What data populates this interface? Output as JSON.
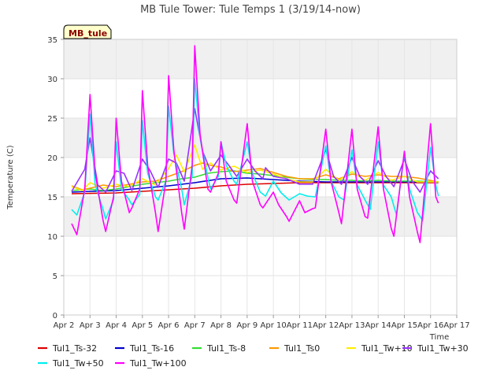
{
  "chart_data": {
    "type": "line",
    "title": "MB Tule Tower: Tule Temps 1 (3/19/14-now)",
    "badge": "MB_tule",
    "xlabel": "Time",
    "ylabel": "Temperature (C)",
    "xlim": [
      2,
      17
    ],
    "ylim": [
      0,
      35
    ],
    "yticks": [
      0,
      5,
      10,
      15,
      20,
      25,
      30,
      35
    ],
    "xticks": [
      {
        "v": 2,
        "label": "Apr 2"
      },
      {
        "v": 3,
        "label": "Apr 3"
      },
      {
        "v": 4,
        "label": "Apr 4"
      },
      {
        "v": 5,
        "label": "Apr 5"
      },
      {
        "v": 6,
        "label": "Apr 6"
      },
      {
        "v": 7,
        "label": "Apr 7"
      },
      {
        "v": 8,
        "label": "Apr 8"
      },
      {
        "v": 9,
        "label": "Apr 9"
      },
      {
        "v": 10,
        "label": "Apr 10"
      },
      {
        "v": 11,
        "label": "Apr 11"
      },
      {
        "v": 12,
        "label": "Apr 12"
      },
      {
        "v": 13,
        "label": "Apr 13"
      },
      {
        "v": 14,
        "label": "Apr 14"
      },
      {
        "v": 15,
        "label": "Apr 15"
      },
      {
        "v": 16,
        "label": "Apr 16"
      },
      {
        "v": 17,
        "label": "Apr 17"
      }
    ],
    "series": [
      {
        "name": "Tul1_Ts-32",
        "color": "#dd0000",
        "points": [
          [
            2.3,
            15.4
          ],
          [
            4,
            15.5
          ],
          [
            5,
            15.7
          ],
          [
            6,
            15.9
          ],
          [
            7,
            16.1
          ],
          [
            8,
            16.4
          ],
          [
            9,
            16.6
          ],
          [
            10,
            16.7
          ],
          [
            11,
            16.8
          ],
          [
            12,
            16.8
          ],
          [
            13,
            16.8
          ],
          [
            14,
            16.8
          ],
          [
            15,
            16.8
          ],
          [
            16.3,
            16.8
          ]
        ]
      },
      {
        "name": "Tul1_Ts-16",
        "color": "#0000cc",
        "points": [
          [
            2.3,
            15.6
          ],
          [
            3,
            15.7
          ],
          [
            4,
            15.8
          ],
          [
            5,
            16.1
          ],
          [
            6,
            16.4
          ],
          [
            7,
            16.8
          ],
          [
            8,
            17.3
          ],
          [
            9,
            17.4
          ],
          [
            10,
            17.2
          ],
          [
            11,
            17.0
          ],
          [
            12,
            16.9
          ],
          [
            13,
            16.9
          ],
          [
            14,
            16.9
          ],
          [
            15,
            16.9
          ],
          [
            16.3,
            16.9
          ]
        ]
      },
      {
        "name": "Tul1_Ts-8",
        "color": "#33dd33",
        "points": [
          [
            2.3,
            15.8
          ],
          [
            3,
            16.0
          ],
          [
            3.5,
            15.8
          ],
          [
            4,
            16.0
          ],
          [
            4.5,
            16.3
          ],
          [
            5,
            16.6
          ],
          [
            5.5,
            16.8
          ],
          [
            6,
            17.0
          ],
          [
            6.5,
            17.3
          ],
          [
            7,
            17.5
          ],
          [
            7.5,
            18.0
          ],
          [
            8,
            18.2
          ],
          [
            8.5,
            18.3
          ],
          [
            9,
            18.0
          ],
          [
            9.5,
            17.9
          ],
          [
            10,
            17.7
          ],
          [
            10.5,
            17.5
          ],
          [
            11,
            17.3
          ],
          [
            11.5,
            17.2
          ],
          [
            12,
            17.2
          ],
          [
            12.5,
            17.1
          ],
          [
            13,
            17.1
          ],
          [
            13.5,
            17.0
          ],
          [
            14,
            17.1
          ],
          [
            14.5,
            17.0
          ],
          [
            15,
            17.0
          ],
          [
            15.5,
            17.0
          ],
          [
            16.3,
            16.9
          ]
        ]
      },
      {
        "name": "Tul1_Ts0",
        "color": "#ff9900",
        "points": [
          [
            2.3,
            16.4
          ],
          [
            2.7,
            15.9
          ],
          [
            3,
            16.1
          ],
          [
            3.5,
            16.5
          ],
          [
            4,
            16.3
          ],
          [
            4.5,
            16.6
          ],
          [
            5,
            16.9
          ],
          [
            5.5,
            17.0
          ],
          [
            6,
            17.6
          ],
          [
            6.5,
            18.2
          ],
          [
            7,
            19.0
          ],
          [
            7.3,
            19.3
          ],
          [
            7.6,
            19.0
          ],
          [
            8,
            18.8
          ],
          [
            8.5,
            18.2
          ],
          [
            9,
            18.4
          ],
          [
            9.5,
            18.6
          ],
          [
            10,
            18.1
          ],
          [
            10.5,
            17.6
          ],
          [
            11,
            17.3
          ],
          [
            11.5,
            17.3
          ],
          [
            12,
            17.8
          ],
          [
            12.5,
            17.3
          ],
          [
            13,
            17.9
          ],
          [
            13.5,
            17.6
          ],
          [
            14,
            17.8
          ],
          [
            14.5,
            17.6
          ],
          [
            15,
            17.6
          ],
          [
            15.5,
            17.4
          ],
          [
            16.3,
            16.9
          ]
        ]
      },
      {
        "name": "Tul1_Tw+10",
        "color": "#ffee00",
        "points": [
          [
            2.3,
            16.3
          ],
          [
            2.7,
            15.8
          ],
          [
            3,
            16.8
          ],
          [
            3.5,
            16.1
          ],
          [
            4,
            16.6
          ],
          [
            4.5,
            16.3
          ],
          [
            5,
            17.3
          ],
          [
            5.5,
            16.5
          ],
          [
            6,
            18.6
          ],
          [
            6.3,
            20.3
          ],
          [
            6.6,
            18.2
          ],
          [
            7,
            21.6
          ],
          [
            7.3,
            18.5
          ],
          [
            7.6,
            19.3
          ],
          [
            8,
            18.4
          ],
          [
            8.5,
            18.9
          ],
          [
            9,
            18.1
          ],
          [
            9.5,
            18.4
          ],
          [
            10,
            17.9
          ],
          [
            10.5,
            17.3
          ],
          [
            11,
            16.9
          ],
          [
            11.5,
            16.9
          ],
          [
            12,
            18.5
          ],
          [
            12.5,
            17.1
          ],
          [
            13,
            18.2
          ],
          [
            13.5,
            17.1
          ],
          [
            14,
            18.1
          ],
          [
            14.5,
            17.1
          ],
          [
            15,
            17.6
          ],
          [
            15.5,
            16.9
          ],
          [
            16.3,
            16.9
          ]
        ]
      },
      {
        "name": "Tul1_Tw+30",
        "color": "#9933ff",
        "points": [
          [
            2.3,
            15.7
          ],
          [
            2.8,
            18.5
          ],
          [
            3,
            22.5
          ],
          [
            3.3,
            16.5
          ],
          [
            3.6,
            15.6
          ],
          [
            4,
            18.3
          ],
          [
            4.3,
            18.0
          ],
          [
            4.6,
            15.8
          ],
          [
            5,
            19.8
          ],
          [
            5.3,
            18.3
          ],
          [
            5.6,
            16.2
          ],
          [
            6,
            19.8
          ],
          [
            6.3,
            19.3
          ],
          [
            6.6,
            17.0
          ],
          [
            7,
            26.2
          ],
          [
            7.3,
            20.8
          ],
          [
            7.6,
            18.3
          ],
          [
            8,
            20.3
          ],
          [
            8.3,
            19.0
          ],
          [
            8.6,
            17.6
          ],
          [
            9,
            19.8
          ],
          [
            9.3,
            18.3
          ],
          [
            9.6,
            17.3
          ],
          [
            9.7,
            18.7
          ],
          [
            10,
            17.6
          ],
          [
            10.5,
            17.3
          ],
          [
            11,
            16.6
          ],
          [
            11.5,
            16.6
          ],
          [
            12,
            21.0
          ],
          [
            12.3,
            17.6
          ],
          [
            12.6,
            16.6
          ],
          [
            13,
            20.0
          ],
          [
            13.3,
            17.6
          ],
          [
            13.6,
            16.6
          ],
          [
            14,
            19.6
          ],
          [
            14.3,
            17.6
          ],
          [
            14.6,
            16.3
          ],
          [
            15,
            19.8
          ],
          [
            15.3,
            17.0
          ],
          [
            15.6,
            15.6
          ],
          [
            16,
            18.3
          ],
          [
            16.3,
            17.3
          ]
        ]
      },
      {
        "name": "Tul1_Tw+50",
        "color": "#00eeee",
        "points": [
          [
            2.3,
            13.4
          ],
          [
            2.5,
            12.7
          ],
          [
            2.8,
            15.6
          ],
          [
            3,
            25.5
          ],
          [
            3.2,
            16.5
          ],
          [
            3.5,
            13.4
          ],
          [
            3.6,
            12.2
          ],
          [
            3.9,
            14.6
          ],
          [
            4,
            22.0
          ],
          [
            4.2,
            16.0
          ],
          [
            4.5,
            14.6
          ],
          [
            4.6,
            14.0
          ],
          [
            4.9,
            15.3
          ],
          [
            5,
            24.7
          ],
          [
            5.2,
            18.0
          ],
          [
            5.5,
            15.0
          ],
          [
            5.6,
            14.6
          ],
          [
            5.9,
            17.0
          ],
          [
            6,
            26.5
          ],
          [
            6.2,
            20.5
          ],
          [
            6.5,
            16.0
          ],
          [
            6.6,
            14.0
          ],
          [
            6.9,
            17.6
          ],
          [
            7,
            30.0
          ],
          [
            7.2,
            22.5
          ],
          [
            7.5,
            17.5
          ],
          [
            7.6,
            16.0
          ],
          [
            7.9,
            17.6
          ],
          [
            8,
            22.0
          ],
          [
            8.2,
            19.0
          ],
          [
            8.5,
            17.0
          ],
          [
            8.6,
            16.6
          ],
          [
            9,
            22.0
          ],
          [
            9.2,
            18.0
          ],
          [
            9.5,
            15.6
          ],
          [
            9.7,
            15.1
          ],
          [
            10,
            17.0
          ],
          [
            10.3,
            15.5
          ],
          [
            10.6,
            14.6
          ],
          [
            11,
            15.4
          ],
          [
            11.3,
            15.1
          ],
          [
            11.6,
            15.0
          ],
          [
            12,
            21.5
          ],
          [
            12.2,
            17.0
          ],
          [
            12.5,
            15.0
          ],
          [
            12.7,
            14.6
          ],
          [
            13,
            21.0
          ],
          [
            13.2,
            16.5
          ],
          [
            13.5,
            14.6
          ],
          [
            13.7,
            13.4
          ],
          [
            14,
            22.0
          ],
          [
            14.2,
            16.5
          ],
          [
            14.5,
            15.0
          ],
          [
            14.7,
            12.7
          ],
          [
            15,
            20.5
          ],
          [
            15.2,
            16.0
          ],
          [
            15.5,
            13.0
          ],
          [
            15.7,
            12.0
          ],
          [
            16,
            21.3
          ],
          [
            16.2,
            16.5
          ],
          [
            16.3,
            15.1
          ]
        ]
      },
      {
        "name": "Tul1_Tw+100",
        "color": "#ff00ff",
        "points": [
          [
            2.3,
            11.6
          ],
          [
            2.5,
            10.2
          ],
          [
            2.8,
            16.0
          ],
          [
            3,
            28.0
          ],
          [
            3.2,
            18.0
          ],
          [
            3.5,
            12.0
          ],
          [
            3.6,
            10.6
          ],
          [
            3.9,
            15.0
          ],
          [
            4,
            25.0
          ],
          [
            4.2,
            17.0
          ],
          [
            4.5,
            13.0
          ],
          [
            4.6,
            13.6
          ],
          [
            4.9,
            16.0
          ],
          [
            5,
            28.5
          ],
          [
            5.2,
            19.0
          ],
          [
            5.5,
            13.0
          ],
          [
            5.6,
            10.6
          ],
          [
            5.9,
            17.0
          ],
          [
            6,
            30.4
          ],
          [
            6.2,
            21.0
          ],
          [
            6.5,
            13.0
          ],
          [
            6.6,
            10.9
          ],
          [
            6.9,
            19.0
          ],
          [
            7,
            34.2
          ],
          [
            7.2,
            23.0
          ],
          [
            7.5,
            16.0
          ],
          [
            7.6,
            15.6
          ],
          [
            7.9,
            18.0
          ],
          [
            8,
            22.0
          ],
          [
            8.2,
            17.0
          ],
          [
            8.5,
            14.6
          ],
          [
            8.6,
            14.2
          ],
          [
            9,
            24.3
          ],
          [
            9.2,
            17.0
          ],
          [
            9.5,
            14.0
          ],
          [
            9.6,
            13.6
          ],
          [
            10,
            15.6
          ],
          [
            10.2,
            14.0
          ],
          [
            10.5,
            12.5
          ],
          [
            10.6,
            11.9
          ],
          [
            11,
            14.5
          ],
          [
            11.2,
            13.0
          ],
          [
            11.5,
            13.5
          ],
          [
            11.6,
            13.6
          ],
          [
            12,
            23.6
          ],
          [
            12.2,
            17.0
          ],
          [
            12.5,
            13.0
          ],
          [
            12.6,
            11.6
          ],
          [
            13,
            23.6
          ],
          [
            13.2,
            16.0
          ],
          [
            13.5,
            12.5
          ],
          [
            13.6,
            12.3
          ],
          [
            14,
            23.9
          ],
          [
            14.2,
            16.0
          ],
          [
            14.5,
            11.0
          ],
          [
            14.6,
            10.0
          ],
          [
            15,
            20.8
          ],
          [
            15.2,
            15.0
          ],
          [
            15.5,
            10.5
          ],
          [
            15.6,
            9.2
          ],
          [
            16,
            24.3
          ],
          [
            16.2,
            15.0
          ],
          [
            16.3,
            14.2
          ]
        ]
      }
    ]
  }
}
